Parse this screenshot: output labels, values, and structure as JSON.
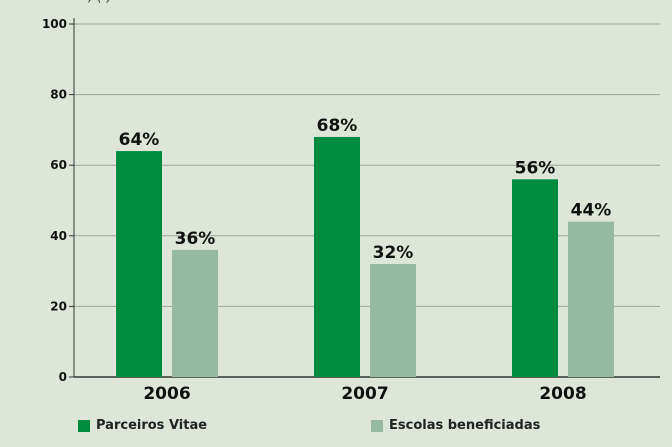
{
  "chart_data": {
    "type": "bar",
    "categories": [
      "2006",
      "2007",
      "2008"
    ],
    "series": [
      {
        "name": "Parceiros Vitae",
        "values": [
          64,
          68,
          56
        ],
        "labels": [
          "64%",
          "68%",
          "56%"
        ],
        "color": "#008c3f"
      },
      {
        "name": "Escolas beneficiadas",
        "values": [
          36,
          32,
          44
        ],
        "labels": [
          "36%",
          "32%",
          "44%"
        ],
        "color": "#96b9a2"
      }
    ],
    "ylim": [
      0,
      100
    ],
    "yticks": [
      0,
      20,
      40,
      60,
      80,
      100
    ],
    "ytick_labels": [
      "0",
      "20",
      "40",
      "60",
      "80",
      "100"
    ],
    "grid": true,
    "legend_position": "bottom",
    "title_partial": ", (  )"
  },
  "colors": {
    "background": "#dde6d9",
    "grid": "#9aa89a",
    "axis": "#333333",
    "text": "#111111"
  }
}
